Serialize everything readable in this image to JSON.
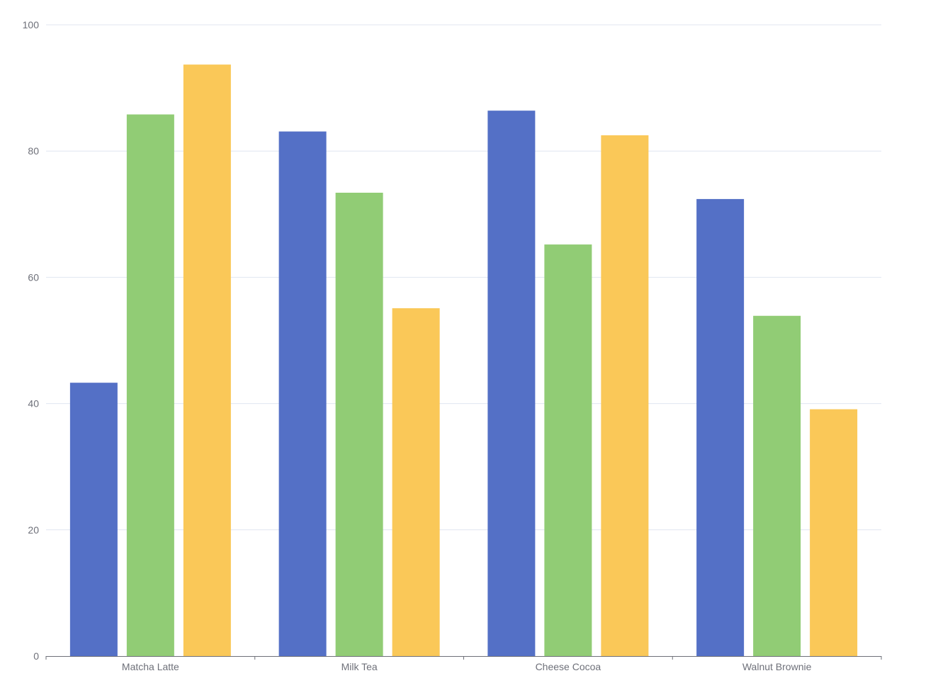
{
  "chart_data": {
    "type": "bar",
    "title": "",
    "xlabel": "",
    "ylabel": "",
    "categories": [
      "Matcha Latte",
      "Milk Tea",
      "Cheese Cocoa",
      "Walnut Brownie"
    ],
    "series": [
      {
        "values": [
          43.3,
          83.1,
          86.4,
          72.4
        ],
        "color": "#5470c6"
      },
      {
        "values": [
          85.8,
          73.4,
          65.2,
          53.9
        ],
        "color": "#91cc75"
      },
      {
        "values": [
          93.7,
          55.1,
          82.5,
          39.1
        ],
        "color": "#fac858"
      }
    ],
    "ylim": [
      0,
      100
    ],
    "yticks": [
      "0",
      "20",
      "40",
      "60",
      "80",
      "100"
    ],
    "grid": true,
    "legend": "none"
  }
}
